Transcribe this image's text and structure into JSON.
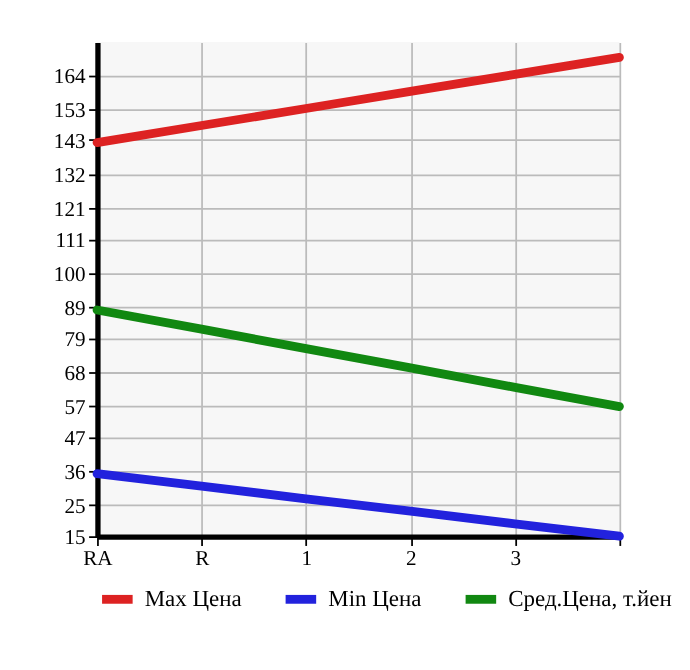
{
  "chart_data": {
    "type": "line",
    "categories": [
      "RA",
      "R",
      "1",
      "2",
      "3",
      null
    ],
    "series": [
      {
        "name": "Max Цена",
        "color": "#dd2222",
        "values": [
          142.2,
          147.7,
          153.2,
          158.7,
          164.2,
          169.7
        ]
      },
      {
        "name": "Min Цена",
        "color": "#2222dd",
        "values": [
          35.2,
          31.2,
          27.1,
          23.1,
          19.0,
          15.0
        ]
      },
      {
        "name": "Сред.Цена, т.йен",
        "color": "#118811",
        "values": [
          88.1,
          81.9,
          75.6,
          69.4,
          63.1,
          56.9
        ]
      }
    ],
    "ylim": [
      15,
      174.64
    ],
    "yticks": [
      15,
      25,
      36,
      47,
      57,
      68,
      79,
      89,
      100,
      111,
      121,
      132,
      143,
      153,
      164
    ],
    "grid": true,
    "legend": "bottom",
    "marker": "none",
    "line_style": "solid"
  }
}
